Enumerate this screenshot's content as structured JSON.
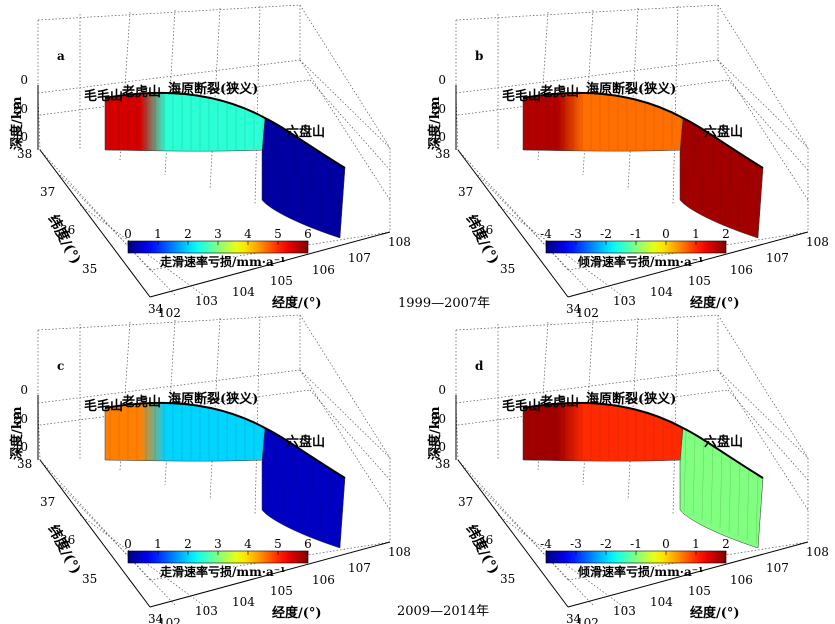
{
  "figure": {
    "period_top": "1999—2007年",
    "period_bottom": "2009—2014年"
  },
  "chart_data": [
    {
      "type": "heatmap",
      "panel": "a",
      "zlabel": "深度/km",
      "ylabel": "纬度/(°)",
      "xlabel": "经度/(°)",
      "z_ticks": [
        "0",
        "20",
        "40"
      ],
      "y_ticks": [
        "38",
        "37",
        "36",
        "35",
        "34"
      ],
      "x_ticks": [
        "102",
        "103",
        "104",
        "105",
        "106",
        "107",
        "108"
      ],
      "xlim": [
        102,
        108
      ],
      "ylim": [
        34,
        38
      ],
      "zlim": [
        0,
        40
      ],
      "grid": true,
      "fault_labels": [
        "毛毛山",
        "老虎山",
        "海原断裂(狭义)",
        "六盘山"
      ],
      "colorbar": {
        "label": "走滑速率亏损/mm·a⁻¹",
        "ticks": [
          "0",
          "1",
          "2",
          "3",
          "4",
          "5",
          "6"
        ],
        "range": [
          0,
          6
        ],
        "colormap": "jet",
        "placement": "inside-left"
      },
      "segments": [
        {
          "name": "毛毛山-老虎山",
          "dominant_value": 5.5
        },
        {
          "name": "海原断裂(狭义)",
          "dominant_value": 2.5
        },
        {
          "name": "六盘山",
          "dominant_value": 0.2
        }
      ]
    },
    {
      "type": "heatmap",
      "panel": "b",
      "zlabel": "深度/km",
      "ylabel": "纬度/(°)",
      "xlabel": "经度/(°)",
      "z_ticks": [
        "0",
        "20",
        "40"
      ],
      "y_ticks": [
        "38",
        "37",
        "36",
        "35",
        "34"
      ],
      "x_ticks": [
        "102",
        "103",
        "104",
        "105",
        "106",
        "107",
        "108"
      ],
      "xlim": [
        102,
        108
      ],
      "ylim": [
        34,
        38
      ],
      "zlim": [
        0,
        40
      ],
      "grid": true,
      "fault_labels": [
        "毛毛山",
        "老虎山",
        "海原断裂(狭义)",
        "六盘山"
      ],
      "colorbar": {
        "label": "倾滑速率亏损/mm·a⁻¹",
        "ticks": [
          "-4",
          "-3",
          "-2",
          "-1",
          "0",
          "1",
          "2"
        ],
        "range": [
          -4,
          2
        ],
        "colormap": "jet",
        "placement": "inside-left"
      },
      "segments": [
        {
          "name": "毛毛山-老虎山",
          "dominant_value": 1.7
        },
        {
          "name": "海原断裂(狭义)",
          "dominant_value": 0.6
        },
        {
          "name": "六盘山",
          "dominant_value": 1.8
        }
      ]
    },
    {
      "type": "heatmap",
      "panel": "c",
      "zlabel": "深度/km",
      "ylabel": "纬度/(°)",
      "xlabel": "经度/(°)",
      "z_ticks": [
        "0",
        "20",
        "40"
      ],
      "y_ticks": [
        "38",
        "37",
        "36",
        "35",
        "34"
      ],
      "x_ticks": [
        "102",
        "103",
        "104",
        "105",
        "106",
        "107",
        "108"
      ],
      "xlim": [
        102,
        108
      ],
      "ylim": [
        34,
        38
      ],
      "zlim": [
        0,
        40
      ],
      "grid": true,
      "fault_labels": [
        "毛毛山",
        "老虎山",
        "海原断裂(狭义)",
        "六盘山"
      ],
      "colorbar": {
        "label": "走滑速率亏损/mm·a⁻¹",
        "ticks": [
          "0",
          "1",
          "2",
          "3",
          "4",
          "5",
          "6"
        ],
        "range": [
          0,
          6
        ],
        "colormap": "jet",
        "placement": "inside-left"
      },
      "segments": [
        {
          "name": "毛毛山-老虎山",
          "dominant_value": 4.5
        },
        {
          "name": "海原断裂(狭义)",
          "dominant_value": 2.0
        },
        {
          "name": "六盘山",
          "dominant_value": 0.4
        }
      ]
    },
    {
      "type": "heatmap",
      "panel": "d",
      "zlabel": "深度/km",
      "ylabel": "纬度/(°)",
      "xlabel": "经度/(°)",
      "z_ticks": [
        "0",
        "20",
        "40"
      ],
      "y_ticks": [
        "38",
        "37",
        "36",
        "35",
        "34"
      ],
      "x_ticks": [
        "102",
        "103",
        "104",
        "105",
        "106",
        "107",
        "108"
      ],
      "xlim": [
        102,
        108
      ],
      "ylim": [
        34,
        38
      ],
      "zlim": [
        0,
        40
      ],
      "grid": true,
      "fault_labels": [
        "毛毛山",
        "老虎山",
        "海原断裂(狭义)",
        "六盘山"
      ],
      "colorbar": {
        "label": "倾滑速率亏损/mm·a⁻¹",
        "ticks": [
          "-4",
          "-3",
          "-2",
          "-1",
          "0",
          "1",
          "2"
        ],
        "range": [
          -4,
          2
        ],
        "colormap": "jet",
        "placement": "inside-left"
      },
      "segments": [
        {
          "name": "毛毛山-老虎山",
          "dominant_value": 1.8
        },
        {
          "name": "海原断裂(狭义)",
          "dominant_value": 1.0
        },
        {
          "name": "六盘山",
          "dominant_value": -1.0
        }
      ]
    }
  ]
}
